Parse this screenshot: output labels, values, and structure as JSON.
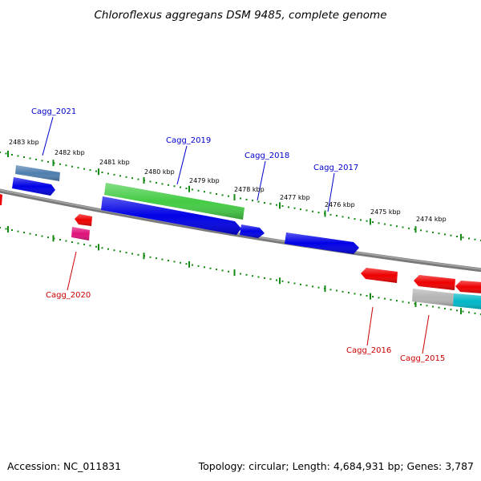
{
  "header": {
    "title": "Chloroflexus aggregans DSM 9485, complete genome"
  },
  "footer": {
    "accession": "Accession: NC_011831",
    "summary": "Topology: circular; Length: 4,684,931 bp; Genes: 3,787"
  },
  "colors": {
    "backbone": "#808080",
    "tick_dots": "#138a13",
    "forward_label": "#0000cc",
    "reverse_label": "#cc0000",
    "blue_gene": "#0000e6",
    "green_gene": "#44cc44",
    "steel_gene": "#4f7fae",
    "red_gene": "#ee0000",
    "magenta_gene": "#e0107a",
    "grey_gene": "#b4b4b4",
    "cyan_gene": "#00b8c8"
  },
  "scale": {
    "unit": "kbp",
    "ticks": [
      "2483 kbp",
      "2482 kbp",
      "2481 kbp",
      "2480 kbp",
      "2479 kbp",
      "2478 kbp",
      "2477 kbp",
      "2476 kbp",
      "2475 kbp",
      "2474 kbp"
    ]
  },
  "forward_labels": [
    "Cagg_2021",
    "Cagg_2019",
    "Cagg_2018",
    "Cagg_2017"
  ],
  "reverse_labels": [
    "Cagg_2020",
    "Cagg_2016",
    "Cagg_2015"
  ]
}
